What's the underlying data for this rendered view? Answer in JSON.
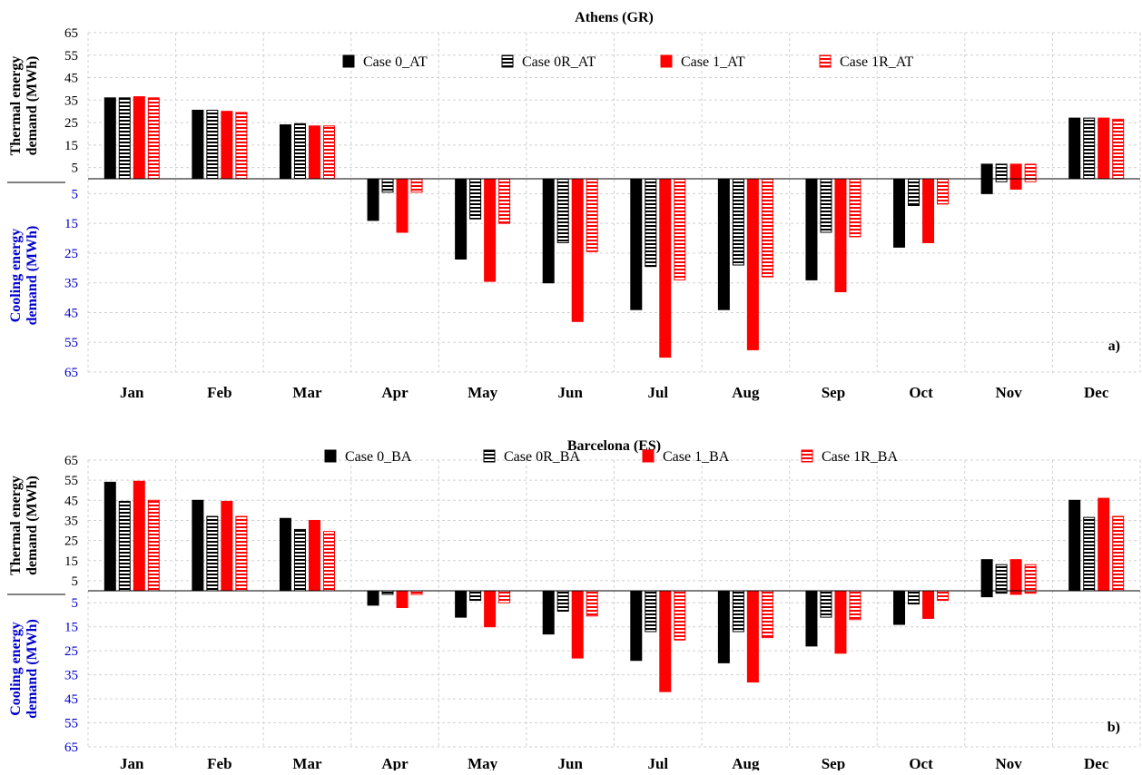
{
  "chart_data": [
    {
      "type": "bar",
      "title": "Athens (GR)",
      "panel_label": "a)",
      "categories": [
        "Jan",
        "Feb",
        "Mar",
        "Apr",
        "May",
        "Jun",
        "Jul",
        "Aug",
        "Sep",
        "Oct",
        "Nov",
        "Dec"
      ],
      "ylabel_top": [
        "Thermal energy",
        "demand (MWh)"
      ],
      "ylabel_bottom": [
        "Cooling energy",
        "demand (MWh)"
      ],
      "ylim": [
        -65,
        65
      ],
      "yticks_top": [
        "65",
        "55",
        "45",
        "35",
        "25",
        "15",
        "5"
      ],
      "yticks_bottom": [
        "5",
        "15",
        "25",
        "35",
        "45",
        "55",
        "65"
      ],
      "grid": true,
      "legend_position": "top-center",
      "series": [
        {
          "name": "Case 0_AT",
          "style": "solid-black",
          "heating": [
            36,
            30.5,
            24,
            0,
            0,
            0,
            0,
            0,
            0,
            0,
            6.5,
            27
          ],
          "cooling": [
            0,
            0,
            0,
            -14,
            -27,
            -35,
            -44,
            -44,
            -34,
            -23,
            -5,
            0
          ]
        },
        {
          "name": "Case 0R_AT",
          "style": "hatch-black",
          "heating": [
            36,
            30.5,
            24.5,
            0,
            0,
            0,
            0,
            0,
            0,
            0,
            6.5,
            27
          ],
          "cooling": [
            0,
            0,
            0,
            -4.5,
            -13.5,
            -21.5,
            -29.5,
            -29,
            -18,
            -9,
            -1,
            0
          ]
        },
        {
          "name": "Case 1_AT",
          "style": "solid-red",
          "heating": [
            36.5,
            30,
            23.5,
            0,
            0,
            0,
            0,
            0,
            0,
            0,
            6.5,
            27
          ],
          "cooling": [
            0,
            0,
            0,
            -18,
            -34.5,
            -48,
            -60,
            -57.5,
            -38,
            -21.5,
            -3.5,
            0
          ]
        },
        {
          "name": "Case 1R_AT",
          "style": "hatch-red",
          "heating": [
            36,
            29.5,
            23.5,
            0,
            0,
            0,
            0,
            0,
            0,
            0,
            6.5,
            26.5
          ],
          "cooling": [
            0,
            0,
            0,
            -4.5,
            -15,
            -24.5,
            -34,
            -33,
            -19.5,
            -8.5,
            -1,
            0
          ]
        }
      ]
    },
    {
      "type": "bar",
      "title": "Barcelona (ES)",
      "panel_label": "b)",
      "categories": [
        "Jan",
        "Feb",
        "Mar",
        "Apr",
        "May",
        "Jun",
        "Jul",
        "Aug",
        "Sep",
        "Oct",
        "Nov",
        "Dec"
      ],
      "ylabel_top": [
        "Thermal energy",
        "demand (MWh)"
      ],
      "ylabel_bottom": [
        "Cooling energy",
        "demand (MWh)"
      ],
      "ylim": [
        -65,
        65
      ],
      "yticks_top": [
        "65",
        "55",
        "45",
        "35",
        "25",
        "15",
        "5"
      ],
      "yticks_bottom": [
        "5",
        "15",
        "25",
        "35",
        "45",
        "55",
        "65"
      ],
      "grid": true,
      "legend_position": "top-center",
      "series": [
        {
          "name": "Case 0_BA",
          "style": "solid-black",
          "heating": [
            54,
            45,
            36,
            0,
            0,
            0,
            0,
            0,
            0,
            0,
            15.5,
            45
          ],
          "cooling": [
            0,
            0,
            0,
            -6,
            -11,
            -18,
            -29,
            -30,
            -23,
            -14,
            -2.5,
            0
          ]
        },
        {
          "name": "Case 0R_BA",
          "style": "hatch-black",
          "heating": [
            44.5,
            37,
            30.5,
            0,
            0,
            0,
            0,
            0,
            0,
            0,
            13,
            36.5
          ],
          "cooling": [
            0,
            0,
            0,
            -1.5,
            -4,
            -8.5,
            -17,
            -17,
            -11,
            -5.5,
            -1,
            0
          ]
        },
        {
          "name": "Case 1_BA",
          "style": "solid-red",
          "heating": [
            54.5,
            44.5,
            35,
            0,
            0,
            0,
            0,
            0,
            0,
            0,
            15.5,
            46
          ],
          "cooling": [
            0,
            0,
            0,
            -7,
            -15,
            -28,
            -42,
            -38,
            -26,
            -11.5,
            -1.5,
            0
          ]
        },
        {
          "name": "Case 1R_BA",
          "style": "hatch-red",
          "heating": [
            45,
            37,
            29.5,
            0,
            0,
            0,
            0,
            0,
            0,
            0,
            13,
            37
          ],
          "cooling": [
            0,
            0,
            0,
            -1.5,
            -5,
            -10.5,
            -20.5,
            -19.5,
            -12,
            -4,
            -1,
            0
          ]
        }
      ]
    }
  ],
  "colors": {
    "black": "#000000",
    "red": "#ff0000",
    "cooling_label": "#0000cc",
    "grid": "#d0d0d0"
  }
}
